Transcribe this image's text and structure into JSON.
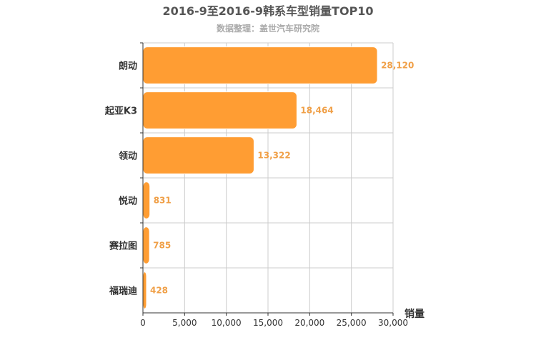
{
  "chart_data": {
    "type": "bar",
    "orientation": "horizontal",
    "title": "2016-9至2016-9韩系车型销量TOP10",
    "subtitle": "数据整理：盖世汽车研究院",
    "xlabel": "销量",
    "ylabel": "",
    "categories": [
      "朗动",
      "起亚K3",
      "领动",
      "悦动",
      "赛拉图",
      "福瑞迪"
    ],
    "values": [
      28120,
      18464,
      13322,
      831,
      785,
      428
    ],
    "value_labels": [
      "28,120",
      "18,464",
      "13,322",
      "831",
      "785",
      "428"
    ],
    "xlim": [
      0,
      30000
    ],
    "xticks": [
      0,
      5000,
      10000,
      15000,
      20000,
      25000,
      30000
    ],
    "xtick_labels": [
      "0",
      "5,000",
      "10,000",
      "15,000",
      "20,000",
      "25,000",
      "30,000"
    ],
    "grid": true,
    "legend": "none",
    "colors": {
      "bar": "#ff9d33",
      "bar_stroke": "#ffffff",
      "value_label": "#f0a048",
      "title": "#555555",
      "subtitle": "#aaaaaa",
      "axis_text": "#333333",
      "grid": "#cccccc",
      "axis": "#333333"
    }
  }
}
